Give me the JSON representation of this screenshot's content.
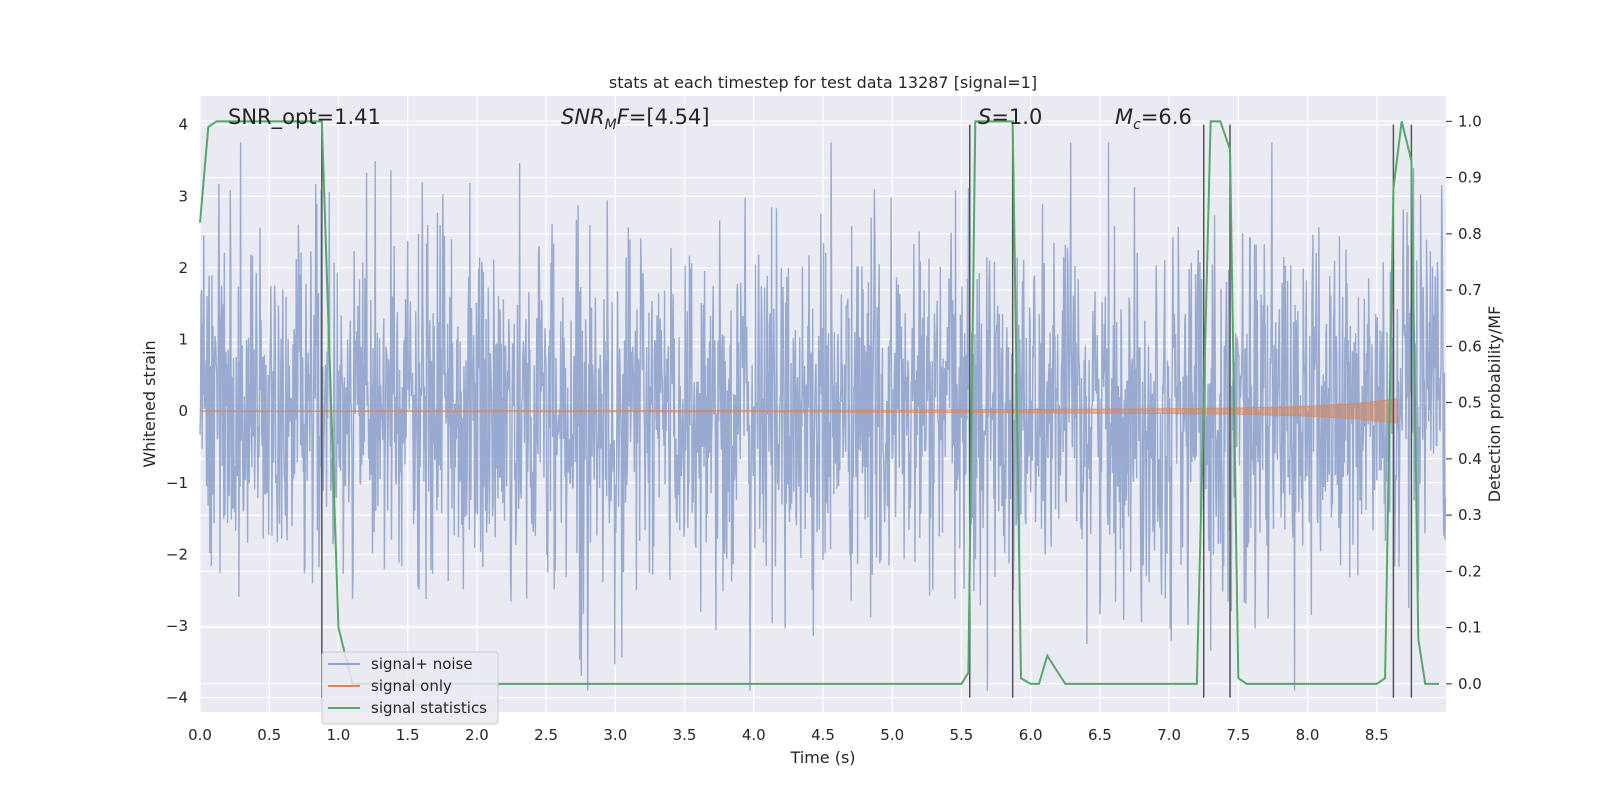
{
  "chart_data": {
    "type": "line",
    "title": "stats at each timestep for test data 13287 [signal=1]",
    "xlabel": "Time (s)",
    "ylabel": "Whitened strain",
    "ylabel_right": "Detection probability/MF",
    "xlim": [
      0.0,
      9.0
    ],
    "ylim": [
      -4.2,
      4.4
    ],
    "ylim_right": [
      -0.05,
      1.045
    ],
    "xticks": [
      0.0,
      0.5,
      1.0,
      1.5,
      2.0,
      2.5,
      3.0,
      3.5,
      4.0,
      4.5,
      5.0,
      5.5,
      6.0,
      6.5,
      7.0,
      7.5,
      8.0,
      8.5
    ],
    "xtick_labels": [
      "0.0",
      "0.5",
      "1.0",
      "1.5",
      "2.0",
      "2.5",
      "3.0",
      "3.5",
      "4.0",
      "4.5",
      "5.0",
      "5.5",
      "6.0",
      "6.5",
      "7.0",
      "7.5",
      "8.0",
      "8.5"
    ],
    "yticks": [
      -4,
      -3,
      -2,
      -1,
      0,
      1,
      2,
      3,
      4
    ],
    "ytick_labels": [
      "−4",
      "−3",
      "−2",
      "−1",
      "0",
      "1",
      "2",
      "3",
      "4"
    ],
    "yticks_right": [
      0.0,
      0.1,
      0.2,
      0.3,
      0.4,
      0.5,
      0.6,
      0.7,
      0.8,
      0.9,
      1.0
    ],
    "ytick_labels_right": [
      "0.0",
      "0.1",
      "0.2",
      "0.3",
      "0.4",
      "0.5",
      "0.6",
      "0.7",
      "0.8",
      "0.9",
      "1.0"
    ],
    "grid": true,
    "legend_position": "lower-left",
    "annotations": [
      {
        "text": "SNR_opt=1.41",
        "x": 0.2,
        "y": 4.05
      },
      {
        "text": "SNR_M F=[4.54]",
        "x": 2.6,
        "y": 4.05
      },
      {
        "text": "S=1.0",
        "x": 5.62,
        "y": 4.05
      },
      {
        "text": "M_c=6.6",
        "x": 6.6,
        "y": 4.05
      }
    ],
    "series": [
      {
        "name": "signal+ noise",
        "color": "#8fa3cc",
        "axis": "left",
        "sample_rate": 256,
        "description_values": "whitened noise, roughly gaussian with sd ~1.2, peaks around ±3.8"
      },
      {
        "name": "signal only",
        "color": "#dd8452",
        "axis": "left",
        "x": [
          0.0,
          1.0,
          2.0,
          3.0,
          4.0,
          5.0,
          5.5,
          6.0,
          6.5,
          7.0,
          7.5,
          8.0,
          8.3,
          8.5,
          8.6,
          8.65
        ],
        "amplitude": [
          0.005,
          0.006,
          0.008,
          0.01,
          0.012,
          0.015,
          0.018,
          0.025,
          0.03,
          0.035,
          0.045,
          0.07,
          0.1,
          0.14,
          0.16,
          0.17
        ]
      },
      {
        "name": "signal statistics",
        "color": "#55a868",
        "axis": "right",
        "x": [
          0.0,
          0.06,
          0.12,
          0.2,
          0.3,
          0.5,
          0.7,
          0.88,
          0.94,
          1.0,
          1.1,
          5.4,
          5.5,
          5.55,
          5.6,
          5.65,
          5.7,
          5.87,
          5.93,
          6.0,
          6.06,
          6.12,
          6.25,
          7.1,
          7.2,
          7.25,
          7.3,
          7.37,
          7.44,
          7.5,
          7.56,
          8.5,
          8.56,
          8.62,
          8.68,
          8.75,
          8.8,
          8.85,
          8.95
        ],
        "values": [
          0.82,
          0.99,
          1.0,
          1.0,
          1.0,
          1.0,
          1.0,
          1.0,
          0.55,
          0.1,
          0.0,
          0.0,
          0.0,
          0.02,
          1.0,
          1.0,
          1.0,
          1.0,
          0.01,
          0.0,
          0.0,
          0.05,
          0.0,
          0.0,
          0.0,
          0.5,
          1.0,
          1.0,
          0.95,
          0.01,
          0.0,
          0.0,
          0.01,
          0.88,
          1.0,
          0.93,
          0.08,
          0.0,
          0.0
        ]
      }
    ],
    "vertical_markers": [
      {
        "x": 0.88,
        "y_from": -4.0,
        "y_to": 4.0
      },
      {
        "x": 5.56,
        "y_from": -4.0,
        "y_to": 4.0
      },
      {
        "x": 5.87,
        "y_from": -4.0,
        "y_to": 4.0
      },
      {
        "x": 7.25,
        "y_from": -4.0,
        "y_to": 4.0
      },
      {
        "x": 7.44,
        "y_from": -4.0,
        "y_to": 4.0
      },
      {
        "x": 8.62,
        "y_from": -4.0,
        "y_to": 4.0
      },
      {
        "x": 8.75,
        "y_from": -4.0,
        "y_to": 4.0
      }
    ]
  },
  "legend": {
    "items": [
      {
        "label": "signal+ noise",
        "color": "#8fa3cc"
      },
      {
        "label": "signal only",
        "color": "#dd8452"
      },
      {
        "label": "signal statistics",
        "color": "#55a868"
      }
    ]
  }
}
